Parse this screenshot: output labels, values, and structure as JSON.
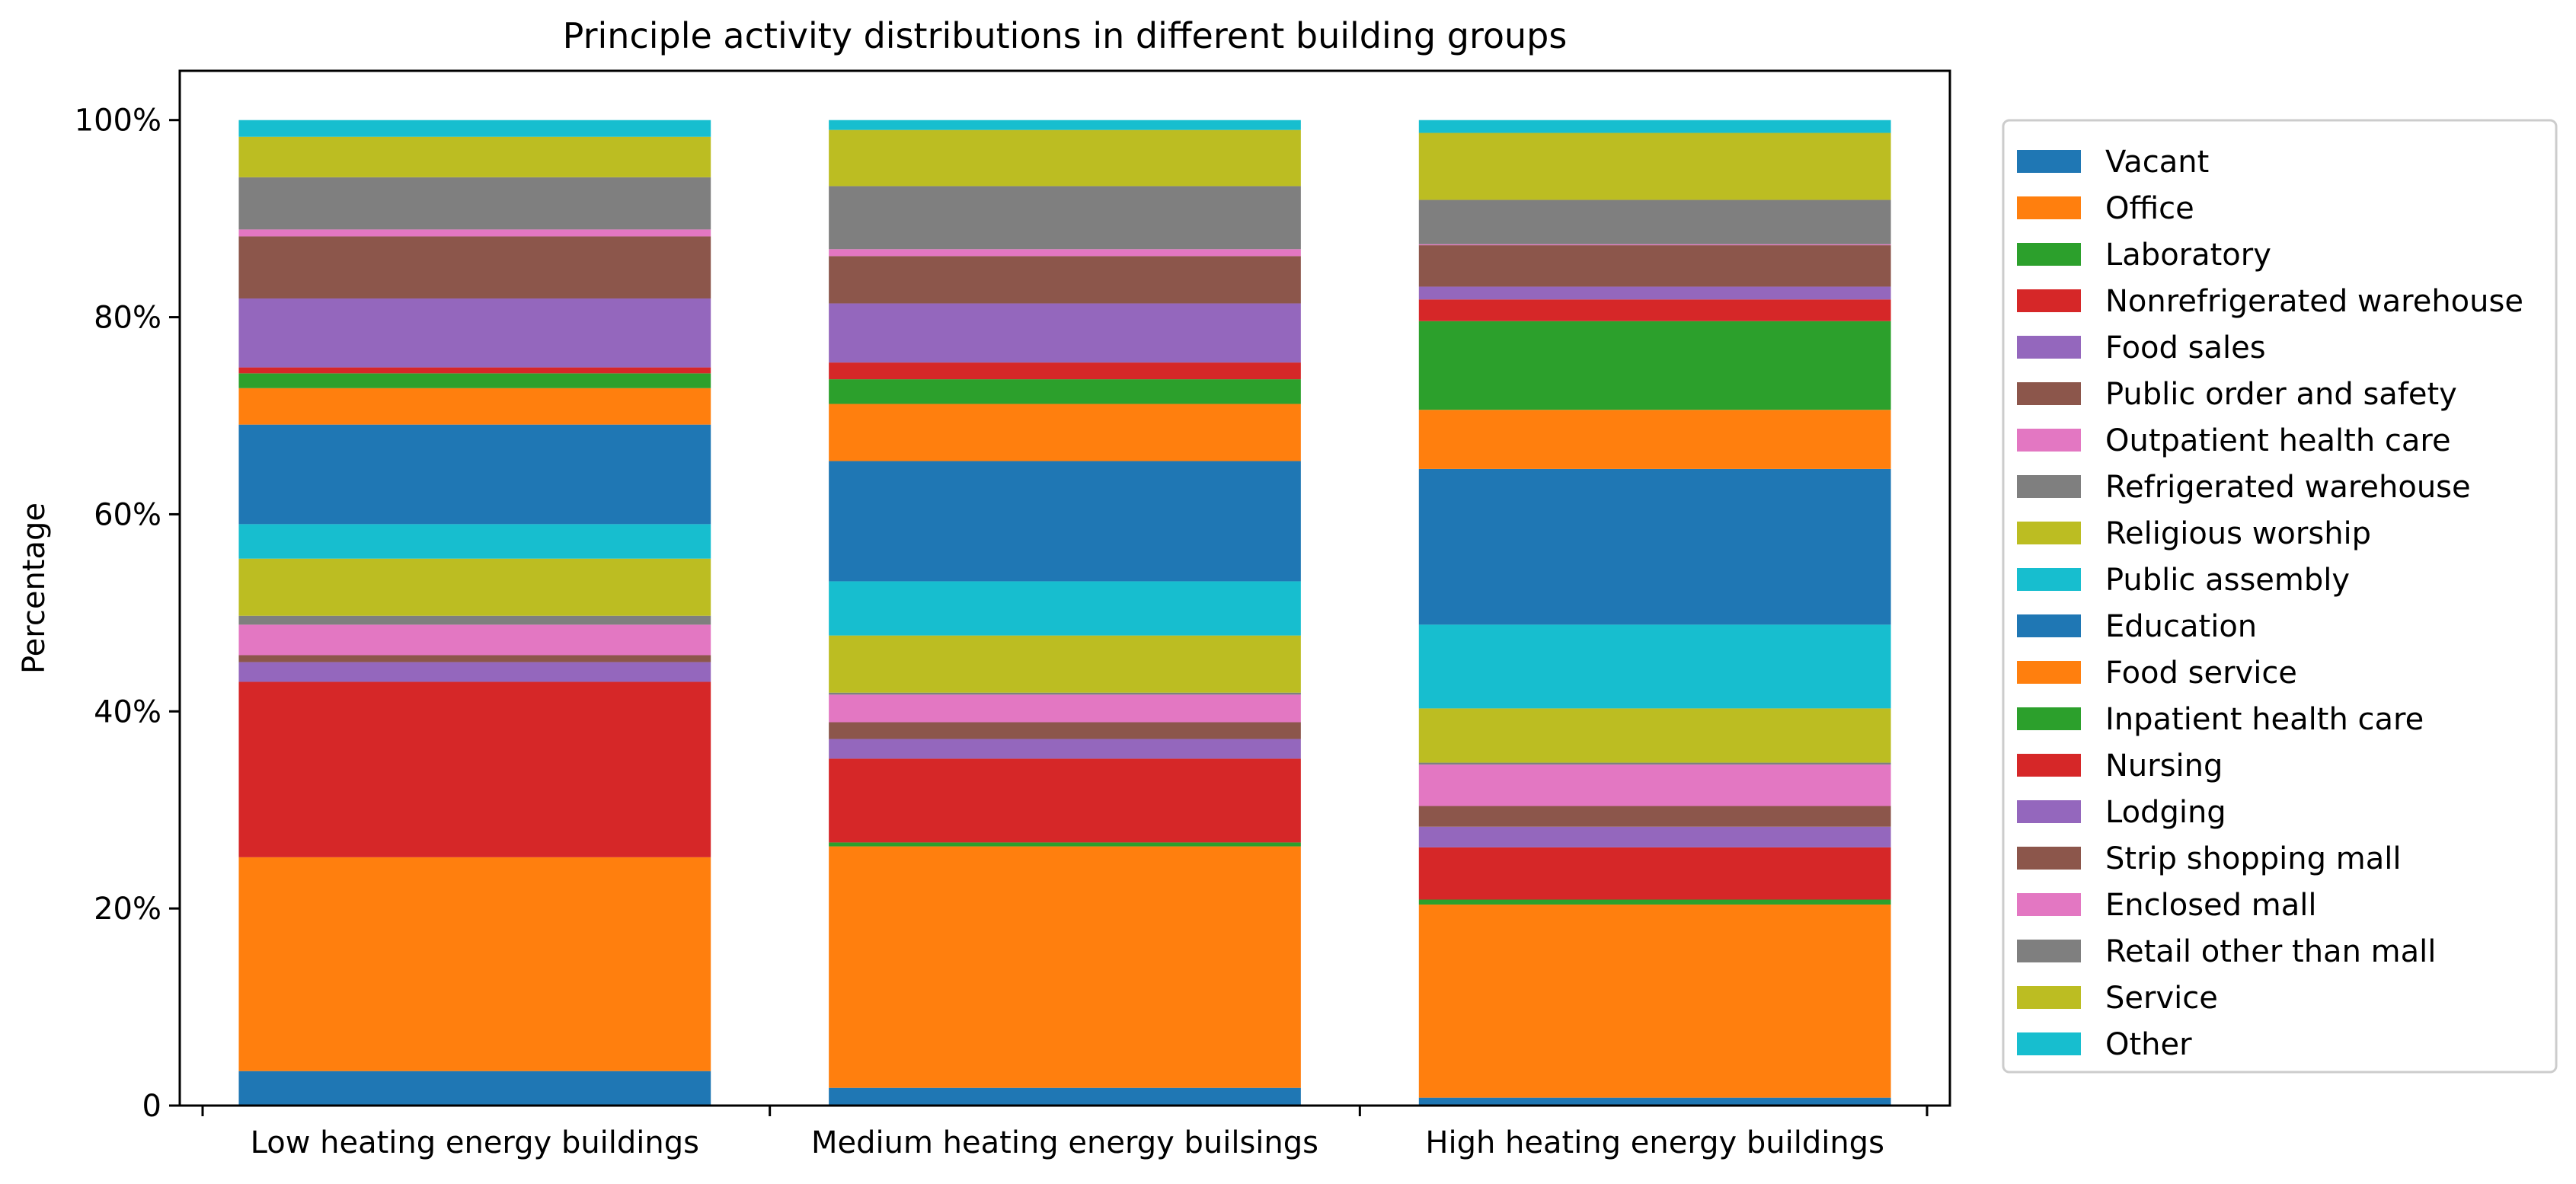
{
  "chart_data": {
    "type": "bar",
    "stacked": true,
    "title": "Principle activity distributions in different building groups",
    "xlabel": "",
    "ylabel": "Percentage",
    "ylim": [
      0,
      105
    ],
    "yticks": [
      0,
      20,
      40,
      60,
      80,
      100
    ],
    "ytick_labels": [
      "0",
      "20%",
      "40%",
      "60%",
      "80%",
      "100%"
    ],
    "categories": [
      "Low heating energy buildings",
      "Medium heating energy builsings",
      "High heating energy buildings"
    ],
    "legend_position": "right, outside",
    "grid": false,
    "series": [
      {
        "name": "Vacant",
        "color": "#1f77b4",
        "values": [
          3.5,
          1.8,
          0.8
        ]
      },
      {
        "name": "Office",
        "color": "#ff7f0e",
        "values": [
          21.7,
          24.5,
          19.6
        ]
      },
      {
        "name": "Laboratory",
        "color": "#2ca02c",
        "values": [
          0.0,
          0.4,
          0.5
        ]
      },
      {
        "name": "Nonrefrigerated warehouse",
        "color": "#d62728",
        "values": [
          17.8,
          8.5,
          5.3
        ]
      },
      {
        "name": "Food sales",
        "color": "#9467bd",
        "values": [
          2.0,
          2.0,
          2.1
        ]
      },
      {
        "name": "Public order and safety",
        "color": "#8c564b",
        "values": [
          0.7,
          1.7,
          2.1
        ]
      },
      {
        "name": "Outpatient health care",
        "color": "#e377c2",
        "values": [
          3.1,
          2.8,
          4.2
        ]
      },
      {
        "name": "Refrigerated warehouse",
        "color": "#7f7f7f",
        "values": [
          0.9,
          0.2,
          0.2
        ]
      },
      {
        "name": "Religious worship",
        "color": "#bcbd22",
        "values": [
          5.8,
          5.8,
          5.5
        ]
      },
      {
        "name": "Public assembly",
        "color": "#17becf",
        "values": [
          3.5,
          5.5,
          8.5
        ]
      },
      {
        "name": "Education",
        "color": "#1f77b4",
        "values": [
          10.1,
          12.2,
          15.8
        ]
      },
      {
        "name": "Food service",
        "color": "#ff7f0e",
        "values": [
          3.7,
          5.8,
          6.0
        ]
      },
      {
        "name": "Inpatient health care",
        "color": "#2ca02c",
        "values": [
          1.5,
          2.5,
          9.0
        ]
      },
      {
        "name": "Nursing",
        "color": "#d62728",
        "values": [
          0.6,
          1.7,
          2.2
        ]
      },
      {
        "name": "Lodging",
        "color": "#9467bd",
        "values": [
          7.0,
          6.0,
          1.3
        ]
      },
      {
        "name": "Strip shopping mall",
        "color": "#8c564b",
        "values": [
          6.3,
          4.8,
          4.2
        ]
      },
      {
        "name": "Enclosed mall",
        "color": "#e377c2",
        "values": [
          0.7,
          0.7,
          0.1
        ]
      },
      {
        "name": "Retail other than mall",
        "color": "#7f7f7f",
        "values": [
          5.3,
          6.4,
          4.5
        ]
      },
      {
        "name": "Service",
        "color": "#bcbd22",
        "values": [
          4.1,
          5.7,
          6.8
        ]
      },
      {
        "name": "Other",
        "color": "#17becf",
        "values": [
          1.7,
          1.0,
          1.3
        ]
      }
    ]
  }
}
